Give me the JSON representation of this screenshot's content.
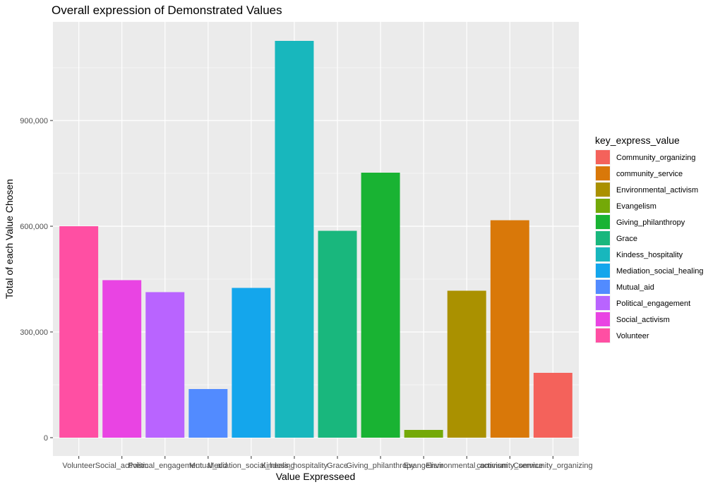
{
  "chart_data": {
    "type": "bar",
    "title": "Overall expression of Demonstrated Values",
    "xlabel": "Value Expresseed",
    "ylabel": "Total of each Value Chosen",
    "ylim": [
      0,
      1150000
    ],
    "yticks": [
      0,
      300000,
      600000,
      900000
    ],
    "ytick_labels": [
      "0",
      "300,000",
      "600,000",
      "900,000"
    ],
    "grid": true,
    "legend_position": "right",
    "categories": [
      "Volunteer",
      "Social_activism",
      "Political_engagement",
      "Mutual_aid",
      "Mediation_social_healing",
      "Kindess_hospitality",
      "Grace",
      "Giving_philanthropy",
      "Evangelism",
      "Environmental_activism",
      "community_service",
      "Community_organizing"
    ],
    "values": [
      600000,
      447000,
      413000,
      138000,
      425000,
      1126000,
      587000,
      752000,
      22000,
      417000,
      617000,
      184000
    ],
    "colors": [
      "#FF4FA3",
      "#E944E3",
      "#B964FF",
      "#528BFF",
      "#14A6EC",
      "#18B7BD",
      "#19B77D",
      "#19B333",
      "#74A908",
      "#AA9100",
      "#D97809",
      "#F4625B"
    ]
  },
  "legend": {
    "title": "key_express_value",
    "items": [
      {
        "label": "Community_organizing",
        "color": "#F4625B"
      },
      {
        "label": "community_service",
        "color": "#D97809"
      },
      {
        "label": "Environmental_activism",
        "color": "#AA9100"
      },
      {
        "label": "Evangelism",
        "color": "#74A908"
      },
      {
        "label": "Giving_philanthropy",
        "color": "#19B333"
      },
      {
        "label": "Grace",
        "color": "#19B77D"
      },
      {
        "label": "Kindess_hospitality",
        "color": "#18B7BD"
      },
      {
        "label": "Mediation_social_healing",
        "color": "#14A6EC"
      },
      {
        "label": "Mutual_aid",
        "color": "#528BFF"
      },
      {
        "label": "Political_engagement",
        "color": "#B964FF"
      },
      {
        "label": "Social_activism",
        "color": "#E944E3"
      },
      {
        "label": "Volunteer",
        "color": "#FF4FA3"
      }
    ]
  }
}
